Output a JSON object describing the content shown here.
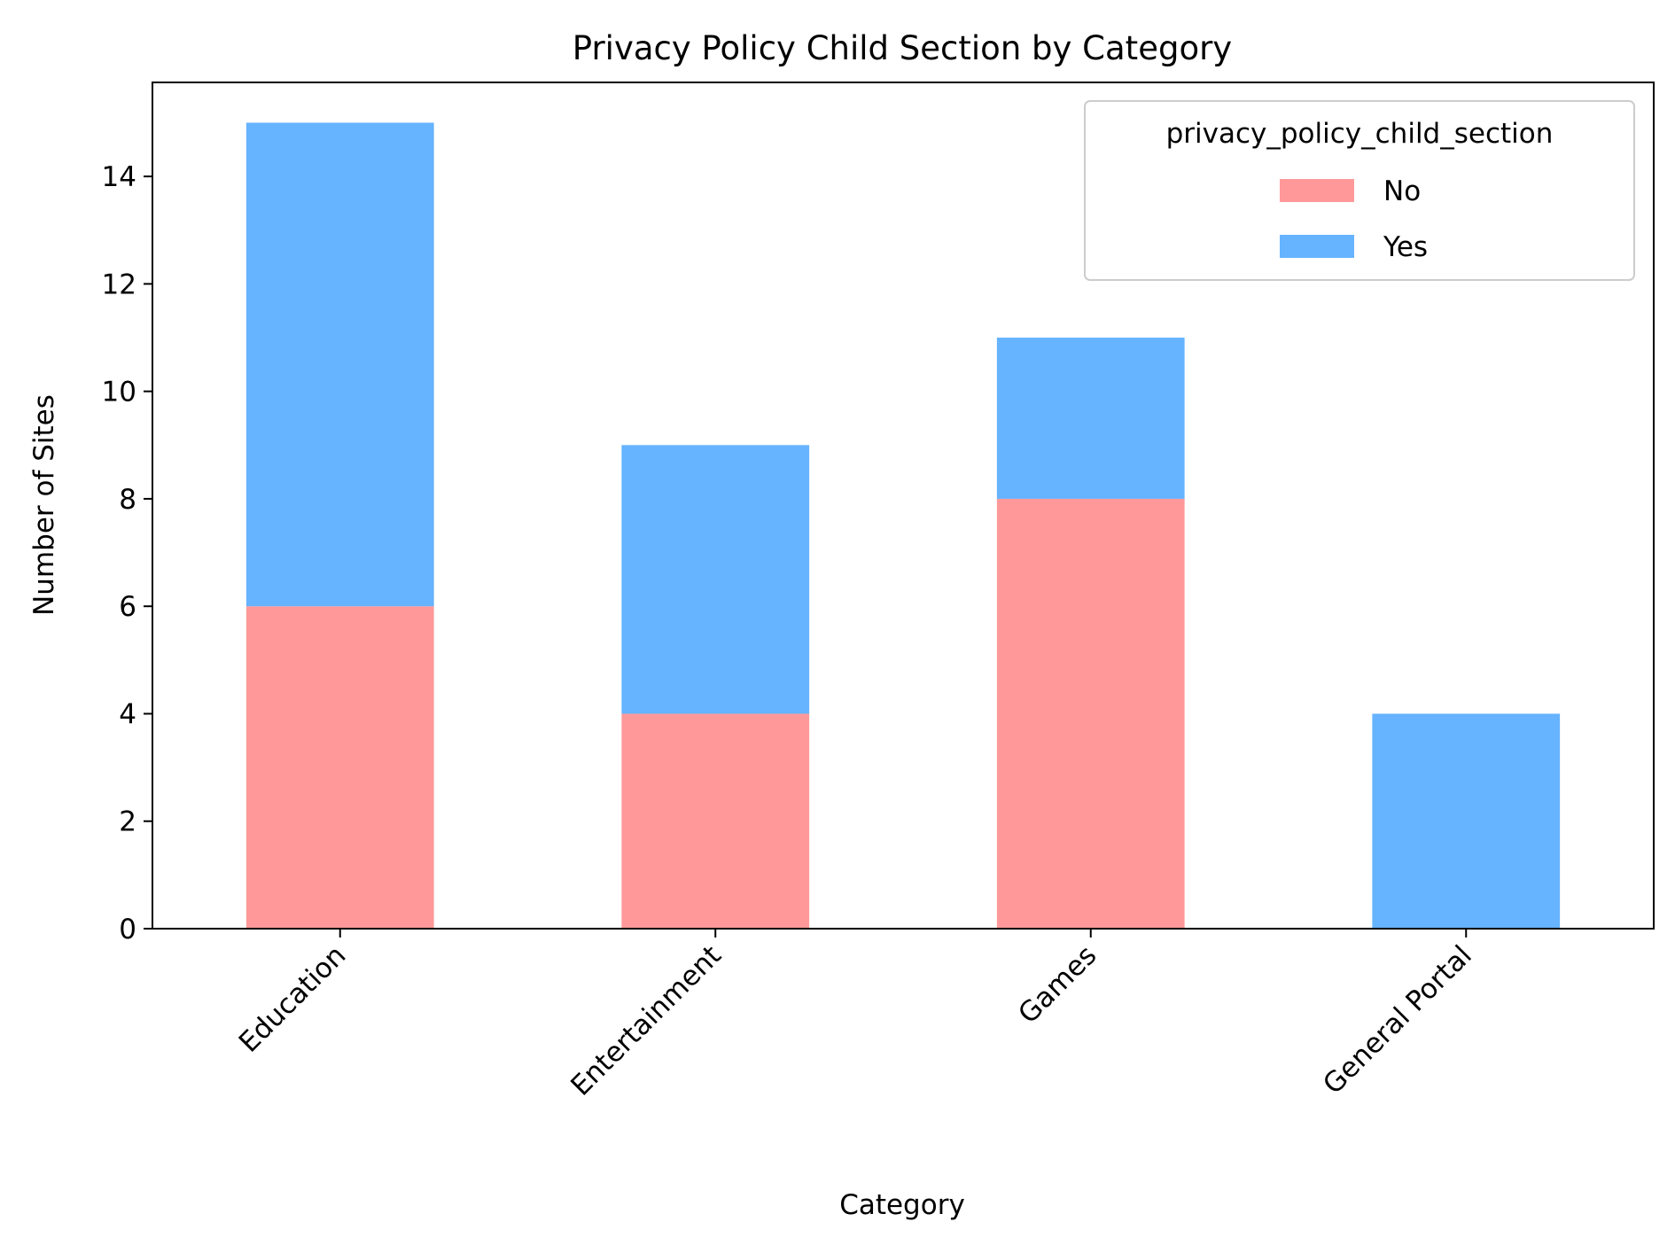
{
  "chart_data": {
    "type": "bar",
    "stacked": true,
    "title": "Privacy Policy Child Section by Category",
    "xlabel": "Category",
    "ylabel": "Number of Sites",
    "categories": [
      "Education",
      "Entertainment",
      "Games",
      "General Portal"
    ],
    "series": [
      {
        "name": "No",
        "values": [
          6,
          4,
          8,
          0
        ],
        "color": "#ff9999"
      },
      {
        "name": "Yes",
        "values": [
          9,
          5,
          3,
          4
        ],
        "color": "#66b3ff"
      }
    ],
    "ylim": [
      0,
      15.75
    ],
    "yticks": [
      0,
      2,
      4,
      6,
      8,
      10,
      12,
      14
    ],
    "grid": false,
    "legend": {
      "title": "privacy_policy_child_section",
      "placement": "top-right"
    }
  }
}
